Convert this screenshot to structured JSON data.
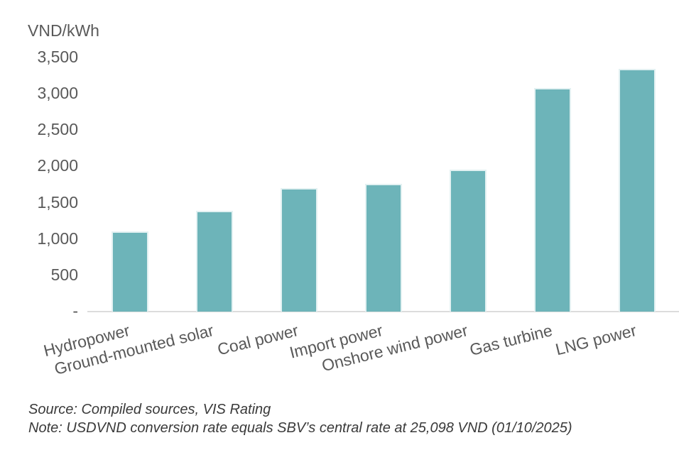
{
  "chart_data": {
    "type": "bar",
    "unit_label": "VND/kWh",
    "categories": [
      "Hydropower",
      "Ground-mounted solar",
      "Coal power",
      "Import power",
      "Onshore wind power",
      "Gas turbine",
      "LNG power"
    ],
    "values": [
      1100,
      1380,
      1700,
      1750,
      1950,
      3070,
      3330
    ],
    "y_tick_labels": [
      "3,500",
      "3,000",
      "2,500",
      "2,000",
      "1,500",
      "1,000",
      "500",
      "-"
    ],
    "ylim": [
      0,
      3500
    ],
    "grid": "off",
    "legend": "none",
    "bar_color": "#6db4b9",
    "bar_border_color": "#e3f1f2",
    "axis_line_color": "#dcdcdc",
    "text_color": "#595959",
    "source": "Source: Compiled sources, VIS Rating",
    "note": "Note: USDVND conversion rate equals SBV’s central rate at 25,098 VND (01/10/2025)"
  }
}
